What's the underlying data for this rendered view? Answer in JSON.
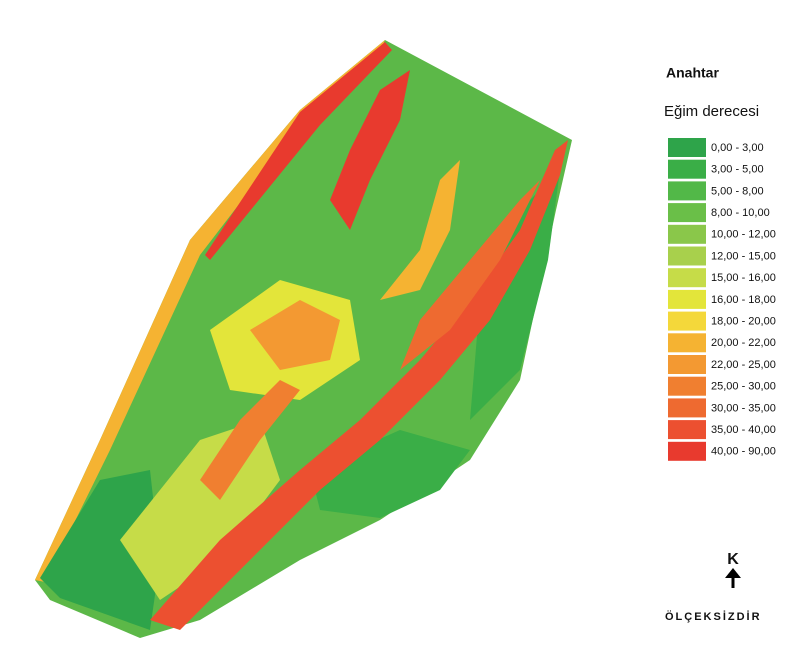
{
  "legend": {
    "title": "Anahtar",
    "subtitle": "Eğim derecesi",
    "items": [
      {
        "label": "0,00 - 3,00",
        "color": "#2ea44a"
      },
      {
        "label": "3,00 - 5,00",
        "color": "#3aae47"
      },
      {
        "label": "5,00 - 8,00",
        "color": "#52b848"
      },
      {
        "label": "8,00 - 10,00",
        "color": "#6abf48"
      },
      {
        "label": "10,00 - 12,00",
        "color": "#8ac74a"
      },
      {
        "label": "12,00 - 15,00",
        "color": "#a8d04c"
      },
      {
        "label": "15,00 - 16,00",
        "color": "#c6dc48"
      },
      {
        "label": "16,00 - 18,00",
        "color": "#e3e53a"
      },
      {
        "label": "18,00 - 20,00",
        "color": "#f4d83a"
      },
      {
        "label": "20,00 - 22,00",
        "color": "#f5b332"
      },
      {
        "label": "22,00 - 25,00",
        "color": "#f39932"
      },
      {
        "label": "25,00 - 30,00",
        "color": "#f07f30"
      },
      {
        "label": "30,00 - 35,00",
        "color": "#ee6a30"
      },
      {
        "label": "35,00 - 40,00",
        "color": "#ec5030"
      },
      {
        "label": "40,00 - 90,00",
        "color": "#e83a2e"
      }
    ]
  },
  "north_arrow": {
    "label": "K"
  },
  "scale_note": "ÖLÇEKSİZDİR"
}
